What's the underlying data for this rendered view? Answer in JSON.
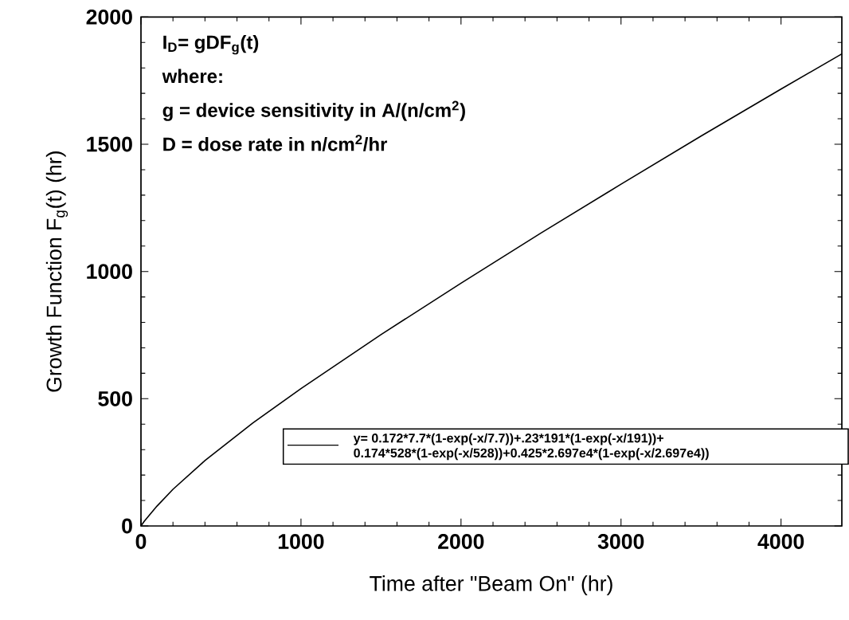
{
  "chart_data": {
    "type": "line",
    "xlabel": "Time after \"Beam On\" (hr)",
    "ylabel": "Growth Function F$_{g}$(t) (hr)",
    "annotations": [
      "I$_{D}$= gDF$_{g}$(t)",
      "where:",
      "g = device sensitivity in A/(n/cm$^{2}$)",
      "D = dose rate in n/cm$^{2}$/hr"
    ],
    "xlim": [
      0,
      4380
    ],
    "ylim": [
      0,
      2000
    ],
    "xticks": [
      0,
      1000,
      2000,
      3000,
      4000
    ],
    "yticks": [
      0,
      500,
      1000,
      1500,
      2000
    ],
    "grid": false,
    "legend": "bottom right",
    "marker": "none",
    "line_style": "solid",
    "x": [
      0,
      20,
      50,
      100,
      200,
      400,
      700,
      1000,
      1500,
      2000,
      2500,
      3000,
      3500,
      4000,
      4380
    ],
    "series": [
      {
        "name": "y= 0.172*7.7*(1-exp(-x/7.7))+.23*191*(1-exp(-x/191))+ 0.174*528*(1-exp(-x/528))+0.425*2.697e4*(1-exp(-x/2.697e4))",
        "color": "#000000",
        "values": [
          0,
          18,
          41,
          78,
          144,
          257,
          405,
          540,
          752,
          954,
          1151,
          1343,
          1532,
          1717,
          1855
        ]
      }
    ]
  }
}
